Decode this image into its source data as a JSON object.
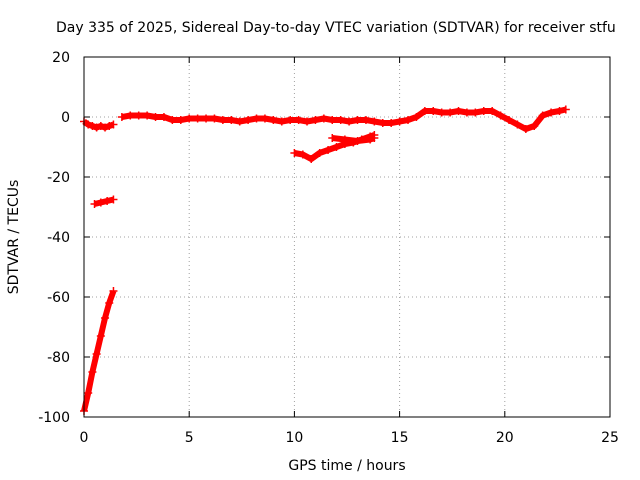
{
  "chart_data": {
    "type": "line",
    "title": "Day 335 of 2025, Sidereal Day-to-day VTEC variation (SDTVAR) for receiver stfu",
    "xlabel": "GPS time / hours",
    "ylabel": "SDTVAR / TECUs",
    "xlim": [
      0,
      25
    ],
    "ylim": [
      -100,
      20
    ],
    "xticks": [
      "0",
      "5",
      "10",
      "15",
      "20",
      "25"
    ],
    "yticks": [
      "20",
      "0",
      "-20",
      "-40",
      "-60",
      "-80",
      "-100"
    ],
    "grid": true,
    "legend": "none",
    "marker": "plus",
    "color": "#ff0000",
    "series": [
      {
        "x": [
          0.0,
          0.2,
          0.4,
          0.6,
          0.8,
          1.0,
          1.2,
          1.4
        ],
        "y": [
          -98,
          -92,
          -85,
          -79,
          -73,
          -67,
          -62,
          -58
        ]
      },
      {
        "x": [
          0.5,
          0.8,
          1.1,
          1.4
        ],
        "y": [
          -29,
          -28.5,
          -28,
          -27.5
        ]
      },
      {
        "x": [
          0.0,
          0.2,
          0.4,
          0.6,
          0.8,
          1.0,
          1.2,
          1.4
        ],
        "y": [
          -1.5,
          -2.5,
          -3.0,
          -3.5,
          -3.0,
          -3.5,
          -3.0,
          -2.5
        ]
      },
      {
        "x": [
          1.8,
          2.2,
          2.6,
          3.0,
          3.4,
          3.8,
          4.2,
          4.6,
          5.0,
          5.4,
          5.8,
          6.2,
          6.6,
          7.0,
          7.4,
          7.8,
          8.2,
          8.6,
          9.0,
          9.4,
          9.8,
          10.2,
          10.6,
          11.0,
          11.4,
          11.8,
          12.2,
          12.6,
          13.0,
          13.4,
          13.8,
          14.2,
          14.6,
          15.0,
          15.4,
          15.8,
          16.2,
          16.6,
          17.0,
          17.4,
          17.8,
          18.2,
          18.6,
          19.0,
          19.4,
          19.8,
          20.2,
          20.6,
          21.0,
          21.4,
          21.8,
          22.2,
          22.6,
          22.9
        ],
        "y": [
          0.0,
          0.5,
          0.5,
          0.5,
          0.0,
          0.0,
          -1.0,
          -1.0,
          -0.5,
          -0.5,
          -0.5,
          -0.5,
          -1.0,
          -1.0,
          -1.5,
          -1.0,
          -0.5,
          -0.5,
          -1.0,
          -1.5,
          -1.0,
          -1.0,
          -1.5,
          -1.0,
          -0.5,
          -1.0,
          -1.0,
          -1.5,
          -1.0,
          -1.0,
          -1.5,
          -2.0,
          -2.0,
          -1.5,
          -1.0,
          0.0,
          2.0,
          2.0,
          1.5,
          1.5,
          2.0,
          1.5,
          1.5,
          2.0,
          2.0,
          0.5,
          -1.0,
          -2.5,
          -4.0,
          -3.0,
          0.5,
          1.5,
          2.0,
          2.5
        ]
      },
      {
        "x": [
          10.0,
          10.4,
          10.8,
          11.2,
          11.6,
          12.0,
          12.4,
          12.8,
          13.2,
          13.6,
          13.8
        ],
        "y": [
          -12,
          -12.5,
          -14,
          -12,
          -11,
          -10,
          -9,
          -8.5,
          -7.5,
          -6.5,
          -6
        ]
      },
      {
        "x": [
          11.8,
          12.4,
          13.0,
          13.6,
          13.8
        ],
        "y": [
          -7,
          -7.5,
          -8,
          -7.5,
          -7
        ]
      }
    ]
  }
}
